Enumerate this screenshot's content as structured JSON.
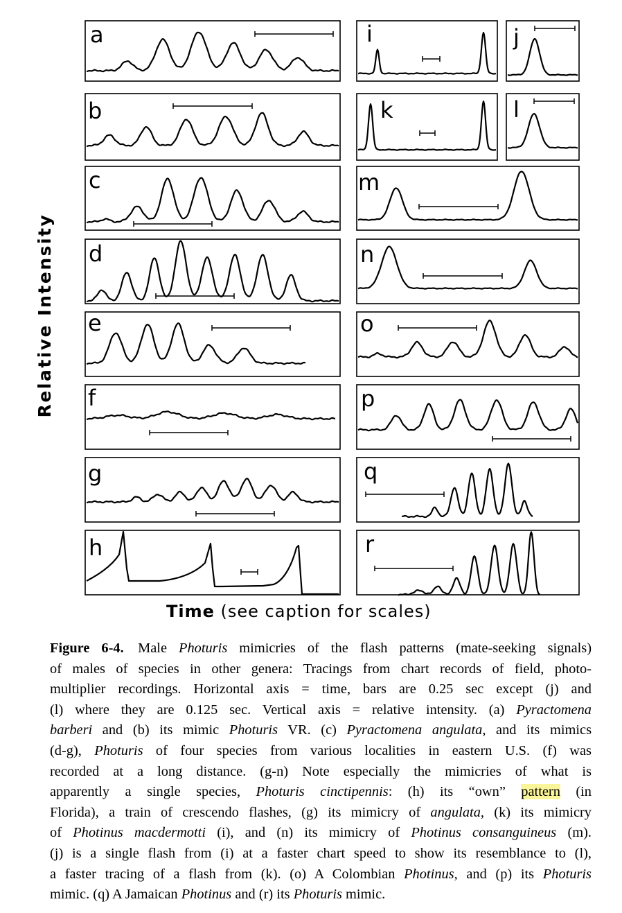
{
  "figure": {
    "y_axis_label": "Relative Intensity",
    "x_axis_label_bold": "Time",
    "x_axis_label_rest": "(see caption for scales)",
    "panels": [
      {
        "id": "a",
        "letter": "a"
      },
      {
        "id": "b",
        "letter": "b"
      },
      {
        "id": "c",
        "letter": "c"
      },
      {
        "id": "d",
        "letter": "d"
      },
      {
        "id": "e",
        "letter": "e"
      },
      {
        "id": "f",
        "letter": "f"
      },
      {
        "id": "g",
        "letter": "g"
      },
      {
        "id": "h",
        "letter": "h"
      },
      {
        "id": "i",
        "letter": "i"
      },
      {
        "id": "j",
        "letter": "j"
      },
      {
        "id": "k",
        "letter": "k"
      },
      {
        "id": "l",
        "letter": "l"
      },
      {
        "id": "m",
        "letter": "m"
      },
      {
        "id": "n",
        "letter": "n"
      },
      {
        "id": "o",
        "letter": "o"
      },
      {
        "id": "p",
        "letter": "p"
      },
      {
        "id": "q",
        "letter": "q"
      },
      {
        "id": "r",
        "letter": "r"
      }
    ]
  },
  "caption": {
    "figure_number": "Figure 6-4.",
    "lines": [
      [
        {
          "t": "Male "
        },
        {
          "t": "Photuris",
          "i": true
        },
        {
          "t": " mimicries of the flash patterns (mate-seeking signals)"
        }
      ],
      [
        {
          "t": "of males of species in other genera:  Tracings from chart records of field, photo-"
        }
      ],
      [
        {
          "t": "multiplier recordings. Horizontal axis = time, bars are 0.25 sec except (j) and"
        }
      ],
      [
        {
          "t": "(l) where they are 0.125 sec. Vertical axis = relative intensity.  (a) "
        },
        {
          "t": "Pyractomena",
          "i": true
        }
      ],
      [
        {
          "t": "barberi",
          "i": true
        },
        {
          "t": " and (b) its mimic "
        },
        {
          "t": "Photuris",
          "i": true
        },
        {
          "t": " VR.  (c) "
        },
        {
          "t": "Pyractomena angulata",
          "i": true
        },
        {
          "t": ", and its mimics"
        }
      ],
      [
        {
          "t": "(d-g), "
        },
        {
          "t": "Photuris",
          "i": true
        },
        {
          "t": " of four species from various localities in eastern U.S. (f) was"
        }
      ],
      [
        {
          "t": "recorded at a long distance.  (g-n) Note especially the mimicries of what is"
        }
      ],
      [
        {
          "t": "apparently a single species, "
        },
        {
          "t": "Photuris cinctipennis",
          "i": true
        },
        {
          "t": ":  (h) its “own” "
        },
        {
          "t": "pattern",
          "h": true
        },
        {
          "t": " (in"
        }
      ],
      [
        {
          "t": "Florida), a train of crescendo flashes, (g) its mimicry of "
        },
        {
          "t": "angulata",
          "i": true
        },
        {
          "t": ", (k) its mimicry"
        }
      ],
      [
        {
          "t": "of "
        },
        {
          "t": "Photinus macdermotti",
          "i": true
        },
        {
          "t": " (i), and (n) its mimicry of "
        },
        {
          "t": "Photinus consanguineus",
          "i": true
        },
        {
          "t": " (m)."
        }
      ],
      [
        {
          "t": "(j) is a single flash from (i) at a faster chart speed to show its resemblance to (l),"
        }
      ],
      [
        {
          "t": "a faster tracing of a flash from (k). (o) A Colombian "
        },
        {
          "t": "Photinus",
          "i": true
        },
        {
          "t": ", and (p) its "
        },
        {
          "t": "Photuris",
          "i": true
        }
      ],
      [
        {
          "t": "mimic.  (q) A Jamaican "
        },
        {
          "t": "Photinus",
          "i": true
        },
        {
          "t": " and (r) its "
        },
        {
          "t": "Photuris",
          "i": true
        },
        {
          "t": " mimic."
        }
      ]
    ]
  }
}
